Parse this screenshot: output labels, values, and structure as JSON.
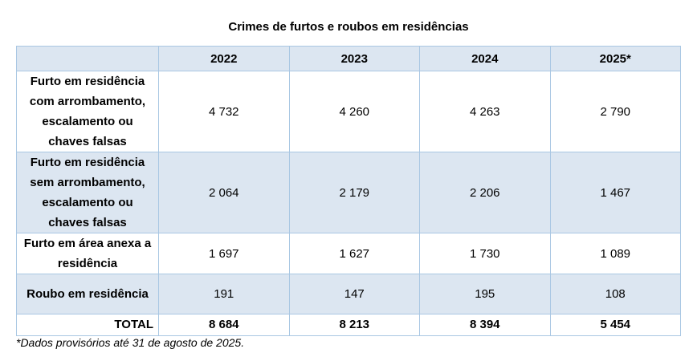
{
  "header": {
    "title": "Crimes de furtos e roubos em residências"
  },
  "table": {
    "columns": [
      "",
      "2022",
      "2023",
      "2024",
      "2025*"
    ],
    "rows": [
      [
        "Furto em residência com arrombamento, escalamento ou chaves falsas",
        "4 732",
        "4 260",
        "4 263",
        "2 790"
      ],
      [
        "Furto em residência sem arrombamento, escalamento ou chaves falsas",
        "2 064",
        "2 179",
        "2 206",
        "1 467"
      ],
      [
        "Furto em área anexa a residência",
        "1 697",
        "1 627",
        "1 730",
        "1 089"
      ],
      [
        "Roubo em residência",
        "191",
        "147",
        "195",
        "108"
      ],
      [
        "TOTAL",
        "8 684",
        "8 213",
        "8 394",
        "5 454"
      ]
    ]
  },
  "footnote": "*Dados provisórios até 31 de agosto de 2025."
}
